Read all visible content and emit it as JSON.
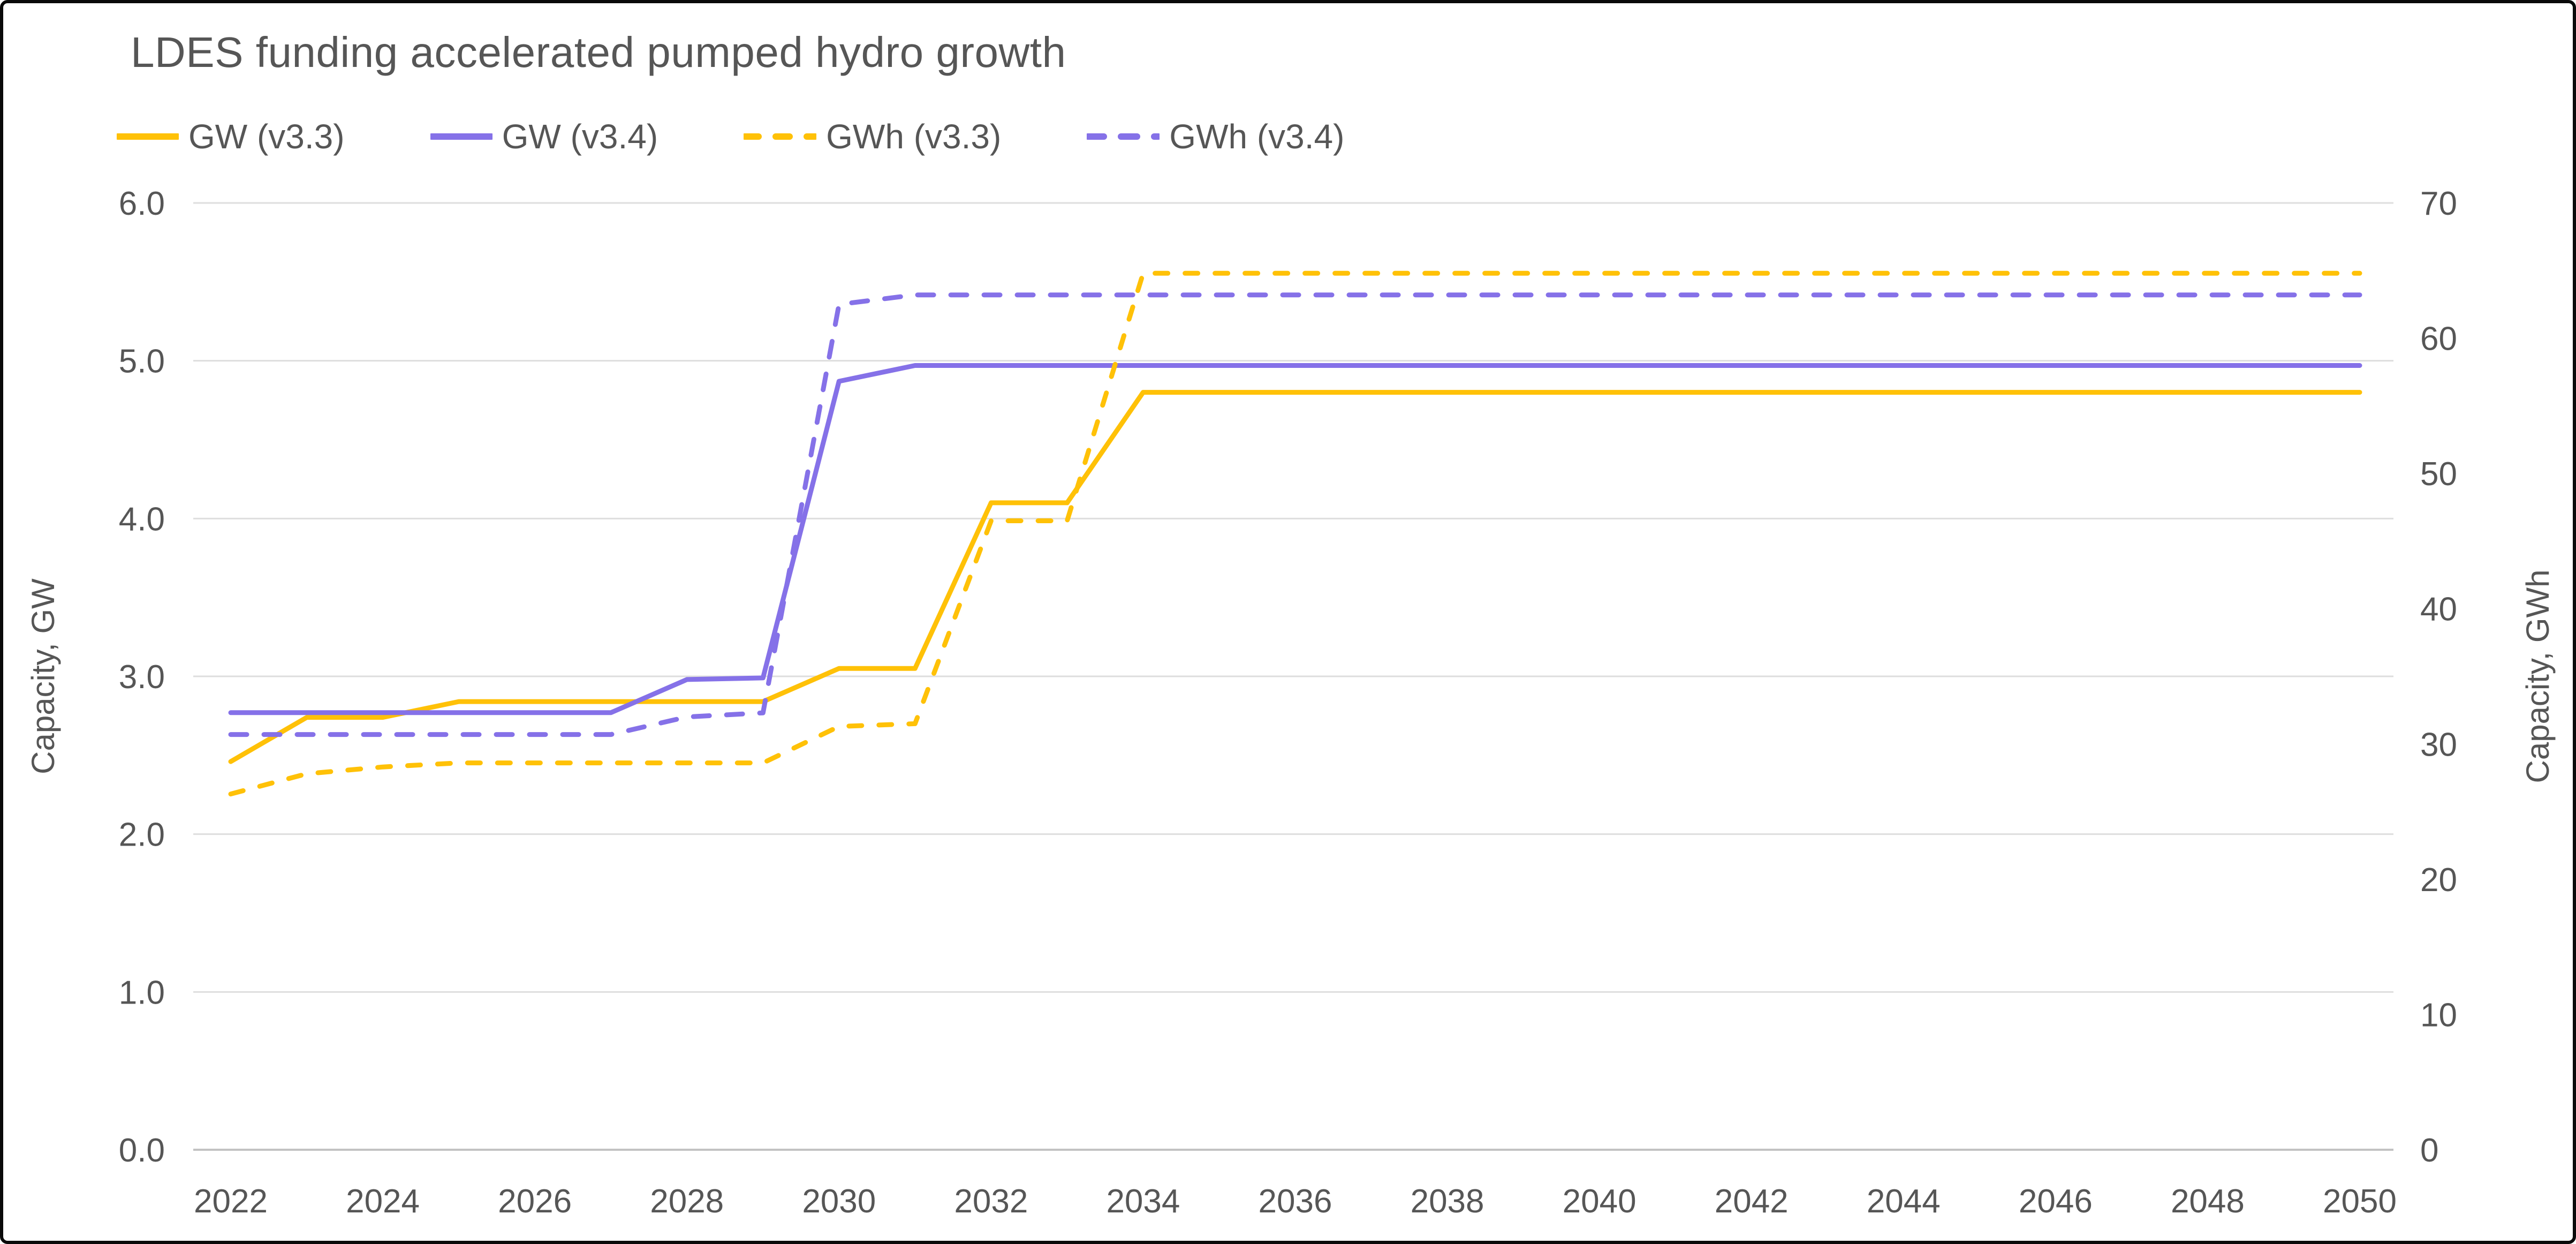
{
  "window": {
    "background": "#ffffff",
    "border_color": "#0a0a0a"
  },
  "chart_data": {
    "type": "line",
    "title": "LDES funding accelerated pumped hydro growth",
    "x": [
      2022,
      2023,
      2024,
      2025,
      2026,
      2027,
      2028,
      2029,
      2030,
      2031,
      2032,
      2033,
      2034,
      2035,
      2036,
      2037,
      2038,
      2039,
      2040,
      2041,
      2042,
      2043,
      2044,
      2045,
      2046,
      2047,
      2048,
      2049,
      2050
    ],
    "x_tick_labels": [
      "2022",
      "2024",
      "2026",
      "2028",
      "2030",
      "2032",
      "2034",
      "2036",
      "2038",
      "2040",
      "2042",
      "2044",
      "2046",
      "2048",
      "2050"
    ],
    "y_left": {
      "label": "Capacity, GW",
      "range": [
        0,
        6
      ],
      "ticks": [
        "0.0",
        "1.0",
        "2.0",
        "3.0",
        "4.0",
        "5.0",
        "6.0"
      ],
      "tick_values": [
        0,
        1,
        2,
        3,
        4,
        5,
        6
      ]
    },
    "y_right": {
      "label": "Capacity, GWh",
      "range": [
        0,
        70
      ],
      "ticks": [
        "0",
        "10",
        "20",
        "30",
        "40",
        "50",
        "60",
        "70"
      ],
      "tick_values": [
        0,
        10,
        20,
        30,
        40,
        50,
        60,
        70
      ]
    },
    "grid": true,
    "legend_position": "top-left",
    "colors": {
      "yellow": "#FFC107",
      "purple": "#8571E8",
      "text": "#565656",
      "gridline": "#DEDEDE",
      "zero_line": "#C2C2C2"
    },
    "series": [
      {
        "name": "GW (v3.3)",
        "axis": "left",
        "style": "solid",
        "color": "#FFC107",
        "values": [
          2.46,
          2.74,
          2.74,
          2.84,
          2.84,
          2.84,
          2.84,
          2.84,
          3.05,
          3.05,
          4.1,
          4.1,
          4.8,
          4.8,
          4.8,
          4.8,
          4.8,
          4.8,
          4.8,
          4.8,
          4.8,
          4.8,
          4.8,
          4.8,
          4.8,
          4.8,
          4.8,
          4.8,
          4.8
        ]
      },
      {
        "name": "GW (v3.4)",
        "axis": "left",
        "style": "solid",
        "color": "#8571E8",
        "values": [
          2.77,
          2.77,
          2.77,
          2.77,
          2.77,
          2.77,
          2.98,
          2.99,
          4.87,
          4.97,
          4.97,
          4.97,
          4.97,
          4.97,
          4.97,
          4.97,
          4.97,
          4.97,
          4.97,
          4.97,
          4.97,
          4.97,
          4.97,
          4.97,
          4.97,
          4.97,
          4.97,
          4.97,
          4.97
        ]
      },
      {
        "name": "GWh (v3.3)",
        "axis": "right",
        "style": "dashed",
        "color": "#FFC107",
        "values": [
          26.3,
          27.8,
          28.3,
          28.6,
          28.6,
          28.6,
          28.6,
          28.6,
          31.3,
          31.5,
          46.5,
          46.5,
          64.8,
          64.8,
          64.8,
          64.8,
          64.8,
          64.8,
          64.8,
          64.8,
          64.8,
          64.8,
          64.8,
          64.8,
          64.8,
          64.8,
          64.8,
          64.8,
          64.8
        ]
      },
      {
        "name": "GWh (v3.4)",
        "axis": "right",
        "style": "dashed",
        "color": "#8571E8",
        "values": [
          30.7,
          30.7,
          30.7,
          30.7,
          30.7,
          30.7,
          32.0,
          32.3,
          62.5,
          63.2,
          63.2,
          63.2,
          63.2,
          63.2,
          63.2,
          63.2,
          63.2,
          63.2,
          63.2,
          63.2,
          63.2,
          63.2,
          63.2,
          63.2,
          63.2,
          63.2,
          63.2,
          63.2,
          63.2
        ]
      }
    ]
  }
}
